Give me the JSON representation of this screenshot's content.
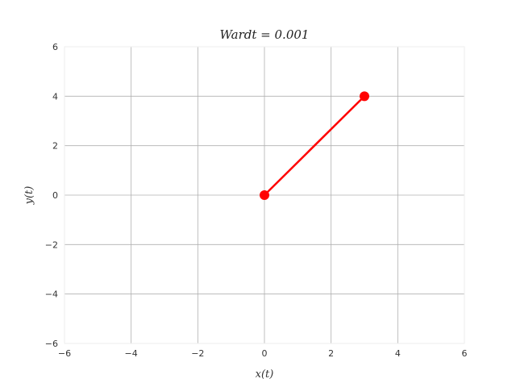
{
  "chart_data": {
    "type": "line",
    "title": "$\\it{Wardt} = 0.001$",
    "title_display": "Wardt = 0.001",
    "xlabel": "x(t)",
    "ylabel": "y(t)",
    "xlim": [
      -6,
      6
    ],
    "ylim": [
      -6,
      6
    ],
    "xticks": [
      -6,
      -4,
      -2,
      0,
      2,
      4,
      6
    ],
    "yticks": [
      -6,
      -4,
      -2,
      0,
      2,
      4,
      6
    ],
    "xtick_labels": [
      "−6",
      "−4",
      "−2",
      "0",
      "2",
      "4",
      "6"
    ],
    "ytick_labels": [
      "−6",
      "−4",
      "−2",
      "0",
      "2",
      "4",
      "6"
    ],
    "grid": true,
    "series": [
      {
        "x": [
          0,
          3
        ],
        "y": [
          0,
          4
        ],
        "color": "#ff0000",
        "marker": "circle"
      }
    ]
  }
}
